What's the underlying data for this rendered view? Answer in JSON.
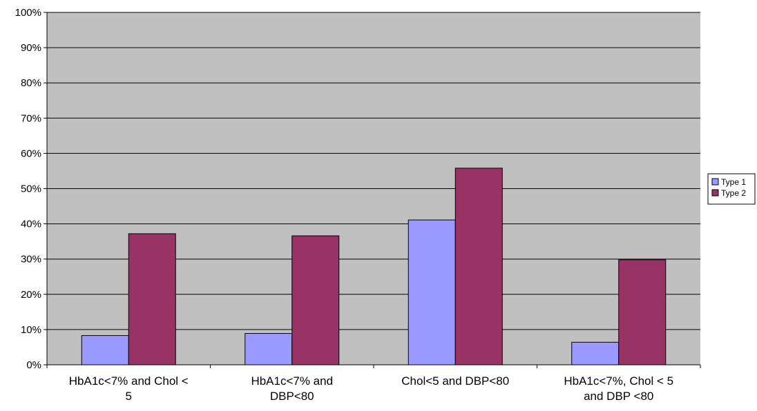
{
  "chart_data": {
    "type": "bar",
    "categories": [
      [
        "HbA1c<7% and Chol <",
        "5"
      ],
      [
        "HbA1c<7% and",
        "DBP<80"
      ],
      [
        "Chol<5 and DBP<80"
      ],
      [
        "HbA1c<7%, Chol < 5",
        "and DBP <80"
      ]
    ],
    "series": [
      {
        "name": "Type 1",
        "values": [
          0.083,
          0.089,
          0.411,
          0.064
        ],
        "color": "#9999ff"
      },
      {
        "name": "Type 2",
        "values": [
          0.372,
          0.366,
          0.558,
          0.298
        ],
        "color": "#993366"
      }
    ],
    "ylim": [
      0,
      1
    ],
    "yticks": [
      "0%",
      "10%",
      "20%",
      "30%",
      "40%",
      "50%",
      "60%",
      "70%",
      "80%",
      "90%",
      "100%"
    ],
    "grid": true,
    "plot_background": "#c0c0c0",
    "legend_position": "right"
  }
}
